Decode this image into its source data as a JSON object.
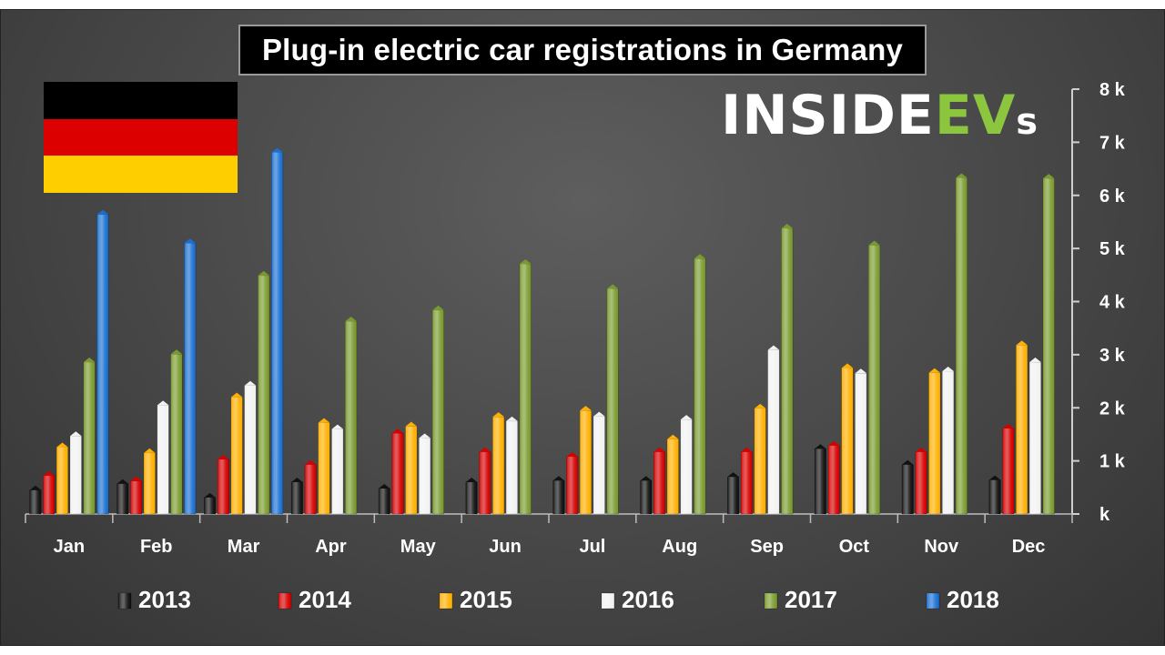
{
  "header": {
    "title": "Plug-in electric car registrations in Germany",
    "brand": {
      "main": "INSIDE",
      "accent": "EV",
      "tail": "s"
    }
  },
  "colors": {
    "2013": "#111111",
    "2014": "#d50000",
    "2015": "#ffb000",
    "2016": "#f2f2f2",
    "2017": "#7a9a2e",
    "2018": "#1a6fd1"
  },
  "chart_data": {
    "type": "bar",
    "categories": [
      "Jan",
      "Feb",
      "Mar",
      "Apr",
      "May",
      "Jun",
      "Jul",
      "Aug",
      "Sep",
      "Oct",
      "Nov",
      "Dec"
    ],
    "ylim": [
      0,
      8000
    ],
    "yticks": [
      {
        "value": 0,
        "label": "k"
      },
      {
        "value": 1000,
        "label": "1 k"
      },
      {
        "value": 2000,
        "label": "2 k"
      },
      {
        "value": 3000,
        "label": "3 k"
      },
      {
        "value": 4000,
        "label": "4 k"
      },
      {
        "value": 5000,
        "label": "5 k"
      },
      {
        "value": 6000,
        "label": "6 k"
      },
      {
        "value": 7000,
        "label": "7 k"
      },
      {
        "value": 8000,
        "label": "8 k"
      }
    ],
    "series": [
      {
        "name": "2013",
        "values": [
          450,
          570,
          310,
          600,
          480,
          600,
          630,
          630,
          700,
          1230,
          930,
          640
        ]
      },
      {
        "name": "2014",
        "values": [
          720,
          620,
          1030,
          930,
          1520,
          1170,
          1080,
          1170,
          1170,
          1290,
          1170,
          1610
        ]
      },
      {
        "name": "2015",
        "values": [
          1260,
          1150,
          2200,
          1720,
          1650,
          1830,
          1950,
          1410,
          1990,
          2750,
          2660,
          3180
        ]
      },
      {
        "name": "2016",
        "values": [
          1470,
          2050,
          2420,
          1600,
          1430,
          1750,
          1840,
          1780,
          3090,
          2650,
          2690,
          2860
        ]
      },
      {
        "name": "2017",
        "values": [
          2860,
          3010,
          4490,
          3630,
          3840,
          4710,
          4240,
          4810,
          5380,
          5060,
          6330,
          6320
        ]
      },
      {
        "name": "2018",
        "values": [
          5640,
          5100,
          6810,
          null,
          null,
          null,
          null,
          null,
          null,
          null,
          null,
          null
        ]
      }
    ],
    "legend_position": "bottom",
    "grid": false
  }
}
